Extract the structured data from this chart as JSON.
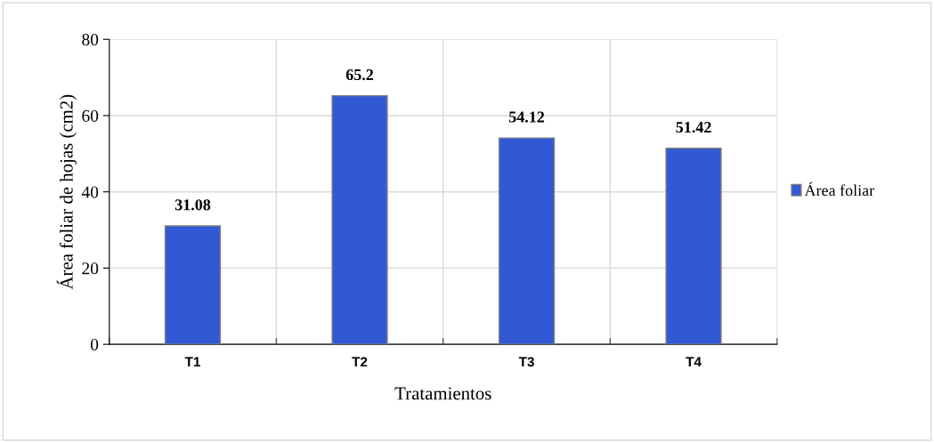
{
  "chart_data": {
    "type": "bar",
    "xlabel": "Tratamientos",
    "ylabel": "Área foliar de hojas (cm2)",
    "categories": [
      "T1",
      "T2",
      "T3",
      "T4"
    ],
    "series": [
      {
        "name": "Área foliar",
        "color": "#3159d6",
        "values": [
          31.08,
          65.2,
          54.12,
          51.42
        ]
      }
    ],
    "ylim": [
      0,
      80
    ],
    "yticks": [
      0,
      20,
      40,
      60,
      80
    ],
    "grid": true,
    "legend": "right",
    "data_labels": true
  }
}
